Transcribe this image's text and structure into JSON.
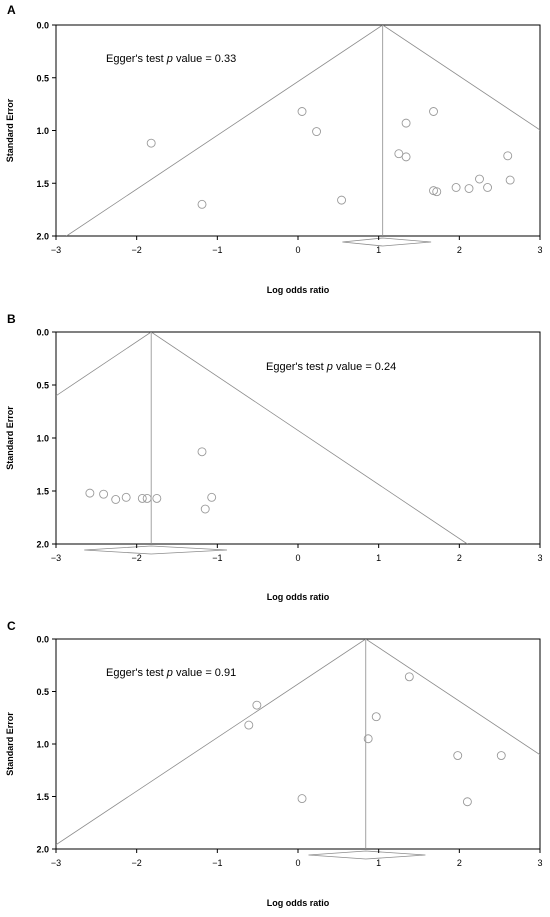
{
  "chart_data": [
    {
      "type": "scatter",
      "panel_label": "A",
      "xlabel": "Log odds ratio",
      "ylabel": "Standard Error",
      "xlim": [
        -3,
        3
      ],
      "ylim": [
        0,
        2
      ],
      "y_inverted": true,
      "xticks": [
        "−3",
        "−2",
        "−1",
        "0",
        "1",
        "2",
        "3"
      ],
      "yticks": [
        "0.0",
        "0.5",
        "1.0",
        "1.5",
        "2.0"
      ],
      "annotation": {
        "prefix": "Egger's test ",
        "italic": "p",
        "suffix": " value = 0.33"
      },
      "pooled_estimate": 1.05,
      "diamond": {
        "center": 1.05,
        "lower": 0.55,
        "upper": 1.65
      },
      "points": [
        {
          "x": -1.82,
          "y": 1.12
        },
        {
          "x": -1.19,
          "y": 1.7
        },
        {
          "x": 0.05,
          "y": 0.82
        },
        {
          "x": 0.23,
          "y": 1.01
        },
        {
          "x": 0.54,
          "y": 1.66
        },
        {
          "x": 1.25,
          "y": 1.22
        },
        {
          "x": 1.34,
          "y": 0.93
        },
        {
          "x": 1.34,
          "y": 1.25
        },
        {
          "x": 1.68,
          "y": 0.82
        },
        {
          "x": 1.68,
          "y": 1.57
        },
        {
          "x": 1.72,
          "y": 1.58
        },
        {
          "x": 1.96,
          "y": 1.54
        },
        {
          "x": 2.12,
          "y": 1.55
        },
        {
          "x": 2.25,
          "y": 1.46
        },
        {
          "x": 2.35,
          "y": 1.54
        },
        {
          "x": 2.6,
          "y": 1.24
        },
        {
          "x": 2.63,
          "y": 1.47
        }
      ]
    },
    {
      "type": "scatter",
      "panel_label": "B",
      "xlabel": "Log odds ratio",
      "ylabel": "Standard Error",
      "xlim": [
        -3,
        3
      ],
      "ylim": [
        0,
        2
      ],
      "y_inverted": true,
      "xticks": [
        "−3",
        "−2",
        "−1",
        "0",
        "1",
        "2",
        "3"
      ],
      "yticks": [
        "0.0",
        "0.5",
        "1.0",
        "1.5",
        "2.0"
      ],
      "annotation": {
        "prefix": "Egger's test ",
        "italic": "p",
        "suffix": " value = 0.24"
      },
      "pooled_estimate": -1.82,
      "diamond": {
        "center": -1.82,
        "lower": -2.65,
        "upper": -0.88
      },
      "points": [
        {
          "x": -2.58,
          "y": 1.52
        },
        {
          "x": -2.41,
          "y": 1.53
        },
        {
          "x": -2.26,
          "y": 1.58
        },
        {
          "x": -2.13,
          "y": 1.56
        },
        {
          "x": -1.93,
          "y": 1.57
        },
        {
          "x": -1.87,
          "y": 1.57
        },
        {
          "x": -1.75,
          "y": 1.57
        },
        {
          "x": -1.19,
          "y": 1.13
        },
        {
          "x": -1.15,
          "y": 1.67
        },
        {
          "x": -1.07,
          "y": 1.56
        }
      ]
    },
    {
      "type": "scatter",
      "panel_label": "C",
      "xlabel": "Log odds ratio",
      "ylabel": "Standard Error",
      "xlim": [
        -3,
        3
      ],
      "ylim": [
        0,
        2
      ],
      "y_inverted": true,
      "xticks": [
        "−3",
        "−2",
        "−1",
        "0",
        "1",
        "2",
        "3"
      ],
      "yticks": [
        "0.0",
        "0.5",
        "1.0",
        "1.5",
        "2.0"
      ],
      "annotation": {
        "prefix": "Egger's test ",
        "italic": "p",
        "suffix": " value = 0.91"
      },
      "pooled_estimate": 0.84,
      "diamond": {
        "center": 0.84,
        "lower": 0.13,
        "upper": 1.58
      },
      "points": [
        {
          "x": -0.61,
          "y": 0.82
        },
        {
          "x": -0.51,
          "y": 0.63
        },
        {
          "x": 0.05,
          "y": 1.52
        },
        {
          "x": 0.87,
          "y": 0.95
        },
        {
          "x": 0.97,
          "y": 0.74
        },
        {
          "x": 1.38,
          "y": 0.36
        },
        {
          "x": 1.98,
          "y": 1.11
        },
        {
          "x": 2.1,
          "y": 1.55
        },
        {
          "x": 2.52,
          "y": 1.11
        }
      ]
    }
  ]
}
